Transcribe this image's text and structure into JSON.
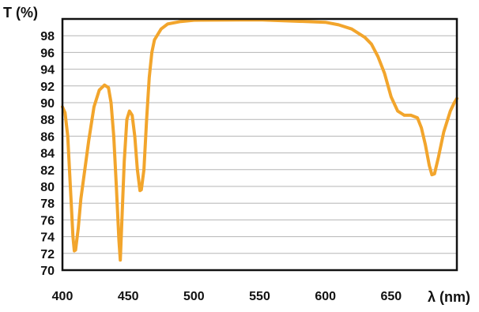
{
  "chart_data": {
    "type": "line",
    "ylabel": "T (%)",
    "xlabel": "λ (nm)",
    "xlim": [
      400,
      700
    ],
    "ylim": [
      70,
      100
    ],
    "xticks": [
      400,
      450,
      500,
      550,
      600,
      650
    ],
    "yticks": [
      70,
      72,
      74,
      76,
      78,
      80,
      82,
      84,
      86,
      88,
      90,
      92,
      94,
      96,
      98
    ],
    "grid": "horizontal",
    "colors": {
      "line": "#f2a52c",
      "grid": "#b5b5b5",
      "frame": "#111111"
    },
    "series": [
      {
        "points": [
          [
            400,
            89.5
          ],
          [
            402,
            88.8
          ],
          [
            404,
            86
          ],
          [
            406,
            80
          ],
          [
            408,
            74
          ],
          [
            409,
            72.3
          ],
          [
            410,
            72.4
          ],
          [
            412,
            75
          ],
          [
            414,
            78.5
          ],
          [
            417,
            82
          ],
          [
            420,
            85.5
          ],
          [
            424,
            89.5
          ],
          [
            428,
            91.5
          ],
          [
            432,
            92.1
          ],
          [
            435,
            91.8
          ],
          [
            437,
            90
          ],
          [
            439,
            86
          ],
          [
            441,
            80
          ],
          [
            443,
            73.5
          ],
          [
            444,
            71.2
          ],
          [
            445,
            75
          ],
          [
            447,
            83
          ],
          [
            449,
            88
          ],
          [
            451,
            89
          ],
          [
            453,
            88.5
          ],
          [
            455,
            86
          ],
          [
            457,
            82
          ],
          [
            459,
            79.5
          ],
          [
            460,
            79.6
          ],
          [
            462,
            82
          ],
          [
            464,
            88
          ],
          [
            466,
            93
          ],
          [
            468,
            96
          ],
          [
            470,
            97.5
          ],
          [
            475,
            98.8
          ],
          [
            480,
            99.4
          ],
          [
            490,
            99.7
          ],
          [
            500,
            99.85
          ],
          [
            550,
            99.9
          ],
          [
            600,
            99.6
          ],
          [
            610,
            99.3
          ],
          [
            620,
            98.8
          ],
          [
            630,
            97.8
          ],
          [
            635,
            97
          ],
          [
            640,
            95.5
          ],
          [
            645,
            93.5
          ],
          [
            650,
            90.7
          ],
          [
            655,
            89
          ],
          [
            660,
            88.5
          ],
          [
            665,
            88.5
          ],
          [
            670,
            88.2
          ],
          [
            673,
            87
          ],
          [
            676,
            85
          ],
          [
            679,
            82.5
          ],
          [
            681,
            81.4
          ],
          [
            683,
            81.5
          ],
          [
            686,
            83.5
          ],
          [
            690,
            86.5
          ],
          [
            695,
            89
          ],
          [
            698,
            90
          ],
          [
            700,
            90.5
          ]
        ]
      }
    ]
  }
}
